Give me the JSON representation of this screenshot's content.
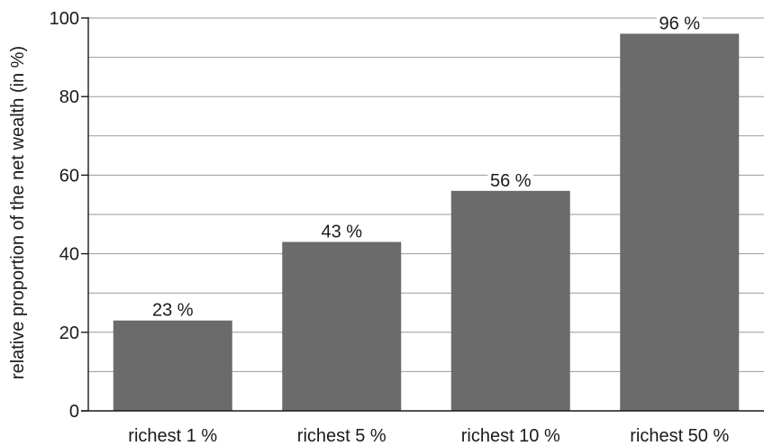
{
  "chart_data": {
    "type": "bar",
    "title": "",
    "xlabel": "",
    "ylabel": "relative proportion of the net wealth (in %)",
    "categories": [
      "richest 1 %",
      "richest 5 %",
      "richest 10 %",
      "richest 50 %"
    ],
    "values": [
      23,
      43,
      56,
      96
    ],
    "data_labels": [
      "23 %",
      "43 %",
      "56 %",
      "96 %"
    ],
    "ylim": [
      0,
      100
    ],
    "yticks": [
      0,
      20,
      40,
      60,
      80,
      100
    ],
    "minor_grid_step": 10,
    "grid": true,
    "legend": "none",
    "bar_color": "#6b6b6b",
    "grid_color": "#9a9a9a",
    "axis_color": "#1a1a1a"
  }
}
